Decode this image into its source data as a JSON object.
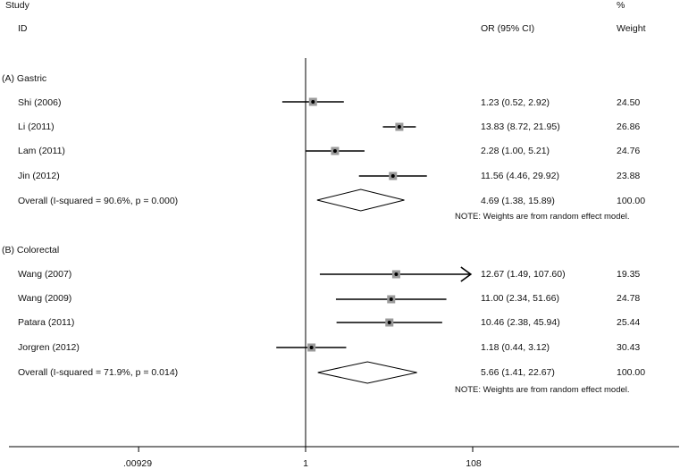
{
  "header": {
    "study": "Study",
    "id": "ID",
    "or_ci": "OR (95% CI)",
    "pct": "%",
    "weight": "Weight"
  },
  "chart_data": {
    "type": "forest",
    "x_scale": "log",
    "null_value": 1,
    "x_ticks": [
      {
        "value": 0.00929,
        "label": ".00929"
      },
      {
        "value": 1,
        "label": "1"
      },
      {
        "value": 108,
        "label": "108"
      }
    ],
    "groups": [
      {
        "label": "(A)  Gastric",
        "studies": [
          {
            "id": "Shi (2006)",
            "or": 1.23,
            "lo": 0.52,
            "hi": 2.92,
            "ci_text": "1.23 (0.52, 2.92)",
            "weight": "24.50",
            "arrow": false
          },
          {
            "id": "Li (2011)",
            "or": 13.83,
            "lo": 8.72,
            "hi": 21.95,
            "ci_text": "13.83 (8.72, 21.95)",
            "weight": "26.86",
            "arrow": false
          },
          {
            "id": "Lam (2011)",
            "or": 2.28,
            "lo": 1.0,
            "hi": 5.21,
            "ci_text": "2.28 (1.00, 5.21)",
            "weight": "24.76",
            "arrow": false
          },
          {
            "id": "Jin (2012)",
            "or": 11.56,
            "lo": 4.46,
            "hi": 29.92,
            "ci_text": "11.56 (4.46, 29.92)",
            "weight": "23.88",
            "arrow": false
          }
        ],
        "overall": {
          "label": "Overall   (I-squared = 90.6%, p = 0.000)",
          "or": 4.69,
          "lo": 1.38,
          "hi": 15.89,
          "ci_text": "4.69 (1.38, 15.89)",
          "weight": "100.00"
        },
        "note": "NOTE: Weights are from random effect model."
      },
      {
        "label": "(B)  Colorectal",
        "studies": [
          {
            "id": "Wang (2007)",
            "or": 12.67,
            "lo": 1.49,
            "hi": 107.6,
            "ci_text": "12.67 (1.49, 107.60)",
            "weight": "19.35",
            "arrow": true
          },
          {
            "id": "Wang (2009)",
            "or": 11.0,
            "lo": 2.34,
            "hi": 51.66,
            "ci_text": "11.00 (2.34, 51.66)",
            "weight": "24.78",
            "arrow": false
          },
          {
            "id": "Patara (2011)",
            "or": 10.46,
            "lo": 2.38,
            "hi": 45.94,
            "ci_text": "10.46 (2.38, 45.94)",
            "weight": "25.44",
            "arrow": false
          },
          {
            "id": "Jorgren (2012)",
            "or": 1.18,
            "lo": 0.44,
            "hi": 3.12,
            "ci_text": "1.18 (0.44, 3.12)",
            "weight": "30.43",
            "arrow": false
          }
        ],
        "overall": {
          "label": "Overall   (I-squared = 71.9%, p = 0.014)",
          "or": 5.66,
          "lo": 1.41,
          "hi": 22.67,
          "ci_text": "5.66 (1.41, 22.67)",
          "weight": "100.00"
        },
        "note": "NOTE: Weights are from random effect model."
      }
    ]
  }
}
